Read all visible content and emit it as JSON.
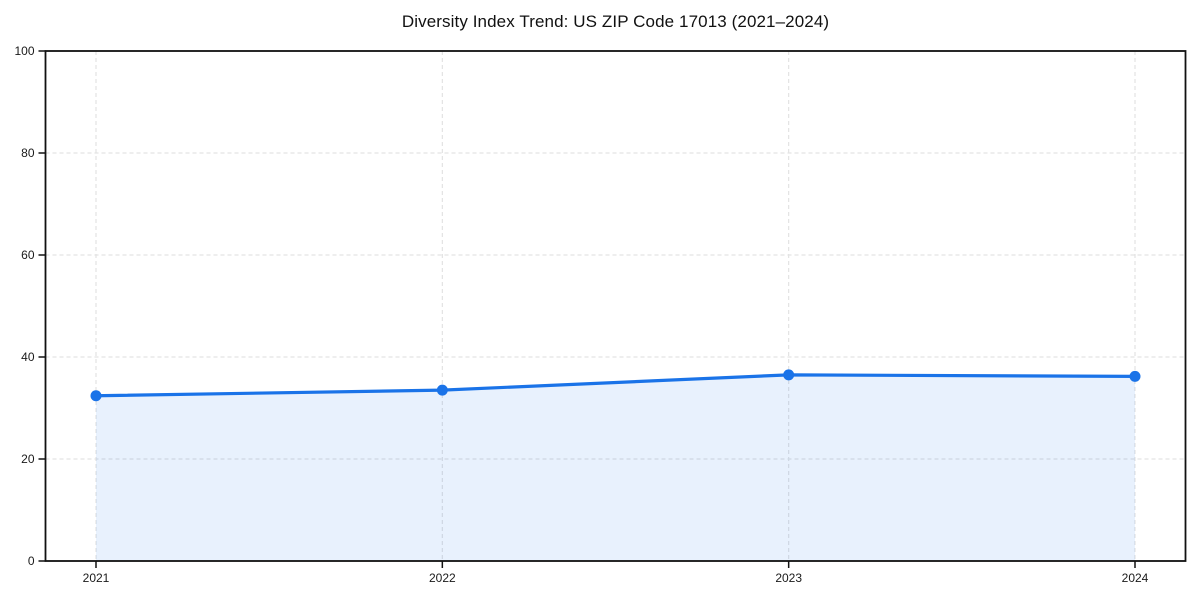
{
  "page": {
    "background": "#ffffff"
  },
  "chart_data": {
    "type": "line",
    "subtype": "line-with-area-fill",
    "title": "Diversity Index Trend: US ZIP Code 17013 (2021–2024)",
    "categories": [
      "2021",
      "2022",
      "2023",
      "2024"
    ],
    "values": [
      32.4,
      33.5,
      36.5,
      36.2
    ],
    "series": [
      {
        "name": "Diversity Index",
        "values": [
          32.4,
          33.5,
          36.5,
          36.2
        ]
      }
    ],
    "xlabel": "",
    "ylabel": "",
    "ylim": [
      0,
      100
    ],
    "yticks": [
      0,
      20,
      40,
      60,
      80,
      100
    ],
    "grid": "dashed",
    "legend": "none",
    "markers": "filled-circle",
    "colors": {
      "line": "#1a73e8",
      "marker": "#1a73e8",
      "area_fill": "rgba(26,115,232,0.10)",
      "grid": "#e3e3e3",
      "spine": "#111111",
      "text": "#1a1a1a"
    }
  }
}
